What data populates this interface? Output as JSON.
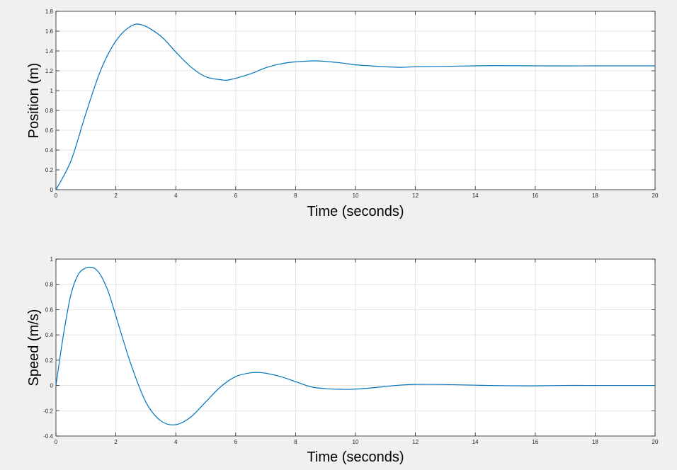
{
  "chart_data": [
    {
      "type": "line",
      "title": "",
      "xlabel": "Time (seconds)",
      "ylabel": "Position (m)",
      "xlim": [
        0,
        20
      ],
      "ylim": [
        0,
        1.8
      ],
      "x_ticks": [
        "0",
        "2",
        "4",
        "6",
        "8",
        "10",
        "12",
        "14",
        "16",
        "18",
        "20"
      ],
      "y_ticks": [
        "0",
        "0.2",
        "0.4",
        "0.6",
        "0.8",
        "1",
        "1.2",
        "1.4",
        "1.6",
        "1.8"
      ],
      "grid": true,
      "line_color": "#0072bd",
      "series": [
        {
          "x": [
            0,
            0.5,
            1,
            1.5,
            2,
            2.5,
            2.9,
            3.5,
            4,
            4.5,
            5,
            5.5,
            5.8,
            6.5,
            7,
            7.5,
            8,
            8.7,
            9.5,
            10,
            10.5,
            11,
            11.5,
            12,
            13,
            14,
            14.5,
            15,
            16,
            17,
            18,
            19,
            20
          ],
          "y": [
            0,
            0.29,
            0.77,
            1.21,
            1.5,
            1.65,
            1.66,
            1.55,
            1.39,
            1.24,
            1.14,
            1.11,
            1.11,
            1.17,
            1.23,
            1.27,
            1.29,
            1.3,
            1.28,
            1.26,
            1.25,
            1.24,
            1.235,
            1.24,
            1.245,
            1.25,
            1.252,
            1.252,
            1.25,
            1.249,
            1.25,
            1.25,
            1.25
          ]
        }
      ]
    },
    {
      "type": "line",
      "title": "",
      "xlabel": "Time (seconds)",
      "ylabel": "Speed (m/s)",
      "xlim": [
        0,
        20
      ],
      "ylim": [
        -0.4,
        1
      ],
      "x_ticks": [
        "0",
        "2",
        "4",
        "6",
        "8",
        "10",
        "12",
        "14",
        "16",
        "18",
        "20"
      ],
      "y_ticks": [
        "-0.4",
        "-0.2",
        "0",
        "0.2",
        "0.4",
        "0.6",
        "0.8",
        "1"
      ],
      "grid": true,
      "line_color": "#0072bd",
      "series": [
        {
          "x": [
            0,
            0.25,
            0.5,
            0.75,
            1,
            1.15,
            1.3,
            1.5,
            1.75,
            2,
            2.5,
            3,
            3.5,
            4,
            4.5,
            5,
            5.5,
            6,
            6.5,
            6.9,
            7.5,
            8,
            8.5,
            9,
            9.5,
            9.9,
            10.5,
            11,
            11.5,
            12,
            13,
            14,
            15,
            16,
            17,
            18,
            19,
            20
          ],
          "y": [
            0,
            0.4,
            0.72,
            0.88,
            0.93,
            0.935,
            0.925,
            0.87,
            0.74,
            0.55,
            0.17,
            -0.13,
            -0.28,
            -0.31,
            -0.25,
            -0.13,
            -0.01,
            0.07,
            0.1,
            0.1,
            0.07,
            0.03,
            -0.01,
            -0.025,
            -0.03,
            -0.03,
            -0.02,
            -0.008,
            0.003,
            0.008,
            0.007,
            0.002,
            -0.002,
            -0.003,
            0,
            0,
            0,
            0
          ]
        }
      ]
    }
  ]
}
